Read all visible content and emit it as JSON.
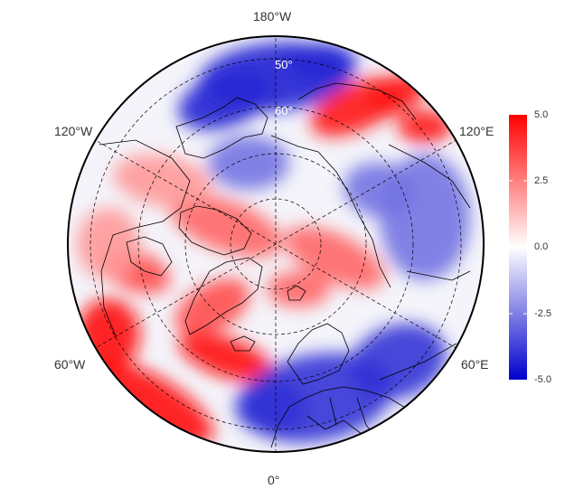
{
  "map": {
    "projection": "north-polar-stereographic",
    "value_range": [
      -5.0,
      5.0
    ],
    "colors": {
      "low": "#0000cc",
      "mid": "#ffffff",
      "high": "#ff0000",
      "frame": "#000000",
      "graticule": "#000000"
    },
    "lon_labels": [
      {
        "id": "n180",
        "text": "180°W"
      },
      {
        "id": "w120",
        "text": "120°W"
      },
      {
        "id": "e120",
        "text": "120°E"
      },
      {
        "id": "w60",
        "text": "60°W"
      },
      {
        "id": "e60",
        "text": "60°E"
      },
      {
        "id": "s0",
        "text": "0°"
      }
    ],
    "lat_labels": [
      {
        "id": "lat50",
        "text": "50°"
      },
      {
        "id": "lat60",
        "text": "60°"
      }
    ],
    "anomaly_regions": [
      {
        "id": "bering-negative",
        "sign": "negative",
        "strength": 0.85
      },
      {
        "id": "kamchatka-positive",
        "sign": "positive",
        "strength": 0.9
      },
      {
        "id": "arctic-ring-positive",
        "sign": "positive",
        "strength": 0.6
      },
      {
        "id": "greenland-positive",
        "sign": "positive",
        "strength": 0.7
      },
      {
        "id": "atlantic-positive",
        "sign": "positive",
        "strength": 0.95
      },
      {
        "id": "europe-negative",
        "sign": "negative",
        "strength": 0.8
      },
      {
        "id": "siberia-negative",
        "sign": "negative",
        "strength": 0.55
      },
      {
        "id": "canada-positive",
        "sign": "positive",
        "strength": 0.4
      }
    ]
  },
  "colorbar": {
    "ticks": [
      "5.0",
      "2.5",
      "0.0",
      "-2.5",
      "-5.0"
    ]
  }
}
